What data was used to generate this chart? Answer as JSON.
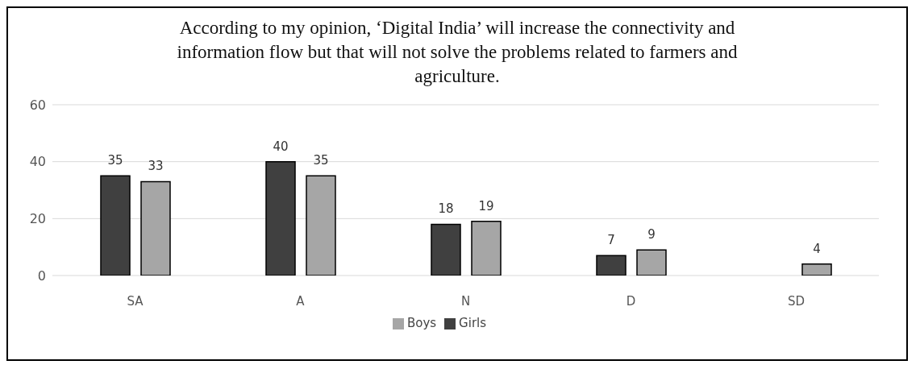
{
  "chart_data": {
    "type": "bar",
    "title": "According to my opinion, ‘Digital India’ will increase the connectivity and information flow but that will not solve the problems related to farmers and agriculture.",
    "categories": [
      "SA",
      "A",
      "N",
      "D",
      "SD"
    ],
    "series": [
      {
        "name": "Girls",
        "color": "#404040",
        "values": [
          35,
          40,
          18,
          7,
          null
        ]
      },
      {
        "name": "Boys",
        "color": "#a6a6a6",
        "values": [
          33,
          35,
          19,
          9,
          4
        ]
      }
    ],
    "ylim": [
      0,
      60
    ],
    "yticks": [
      0,
      20,
      40,
      60
    ],
    "grid": "y",
    "legend": "bottom",
    "data_labels": true
  }
}
